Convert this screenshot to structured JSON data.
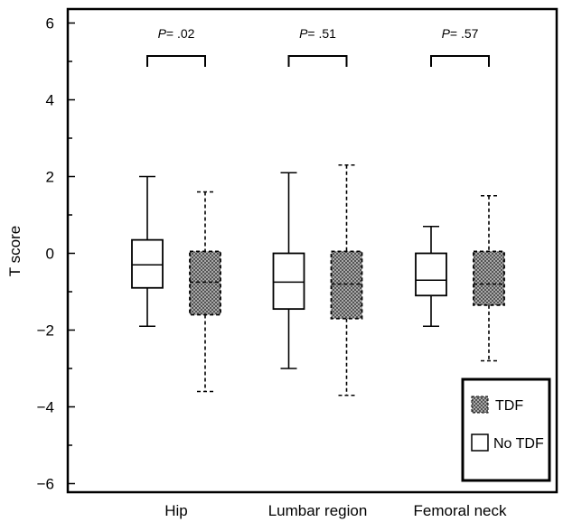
{
  "chart_data": {
    "type": "box",
    "xlabel": "",
    "ylabel": "T score",
    "ylim": [
      -6.4,
      6.4
    ],
    "yticks": [
      6,
      4,
      2,
      0,
      -2,
      -4,
      -6
    ],
    "ytick_labels": [
      "6",
      "4",
      "2",
      "0",
      "−2",
      "−4",
      "−6"
    ],
    "categories": [
      "Hip",
      "Lumbar region",
      "Femoral neck"
    ],
    "series": [
      {
        "name": "No TDF",
        "style": "solid-white",
        "boxes": [
          {
            "min": -1.9,
            "q1": -0.9,
            "median": -0.3,
            "q3": 0.35,
            "max": 2.0
          },
          {
            "min": -3.0,
            "q1": -1.45,
            "median": -0.75,
            "q3": 0.0,
            "max": 2.1
          },
          {
            "min": -1.9,
            "q1": -1.1,
            "median": -0.7,
            "q3": 0.0,
            "max": 0.7
          }
        ]
      },
      {
        "name": "TDF",
        "style": "dashed-hatched",
        "boxes": [
          {
            "min": -3.6,
            "q1": -1.6,
            "median": -0.75,
            "q3": 0.05,
            "max": 1.6
          },
          {
            "min": -3.7,
            "q1": -1.7,
            "median": -0.8,
            "q3": 0.05,
            "max": 2.3
          },
          {
            "min": -2.8,
            "q1": -1.35,
            "median": -0.8,
            "q3": 0.05,
            "max": 1.5
          }
        ]
      }
    ],
    "annotations": [
      {
        "p_prefix": "P",
        "p_value": "= .02"
      },
      {
        "p_prefix": "P",
        "p_value": "= .51"
      },
      {
        "p_prefix": "P",
        "p_value": "= .57"
      }
    ],
    "legend": {
      "position": "bottom-right",
      "items": [
        {
          "label": "TDF",
          "style": "hatched"
        },
        {
          "label": "No TDF",
          "style": "white"
        }
      ]
    },
    "colors": {
      "hatch_bg": "#a8a8a8",
      "hatch_dot": "#555555",
      "line": "#000000"
    }
  }
}
